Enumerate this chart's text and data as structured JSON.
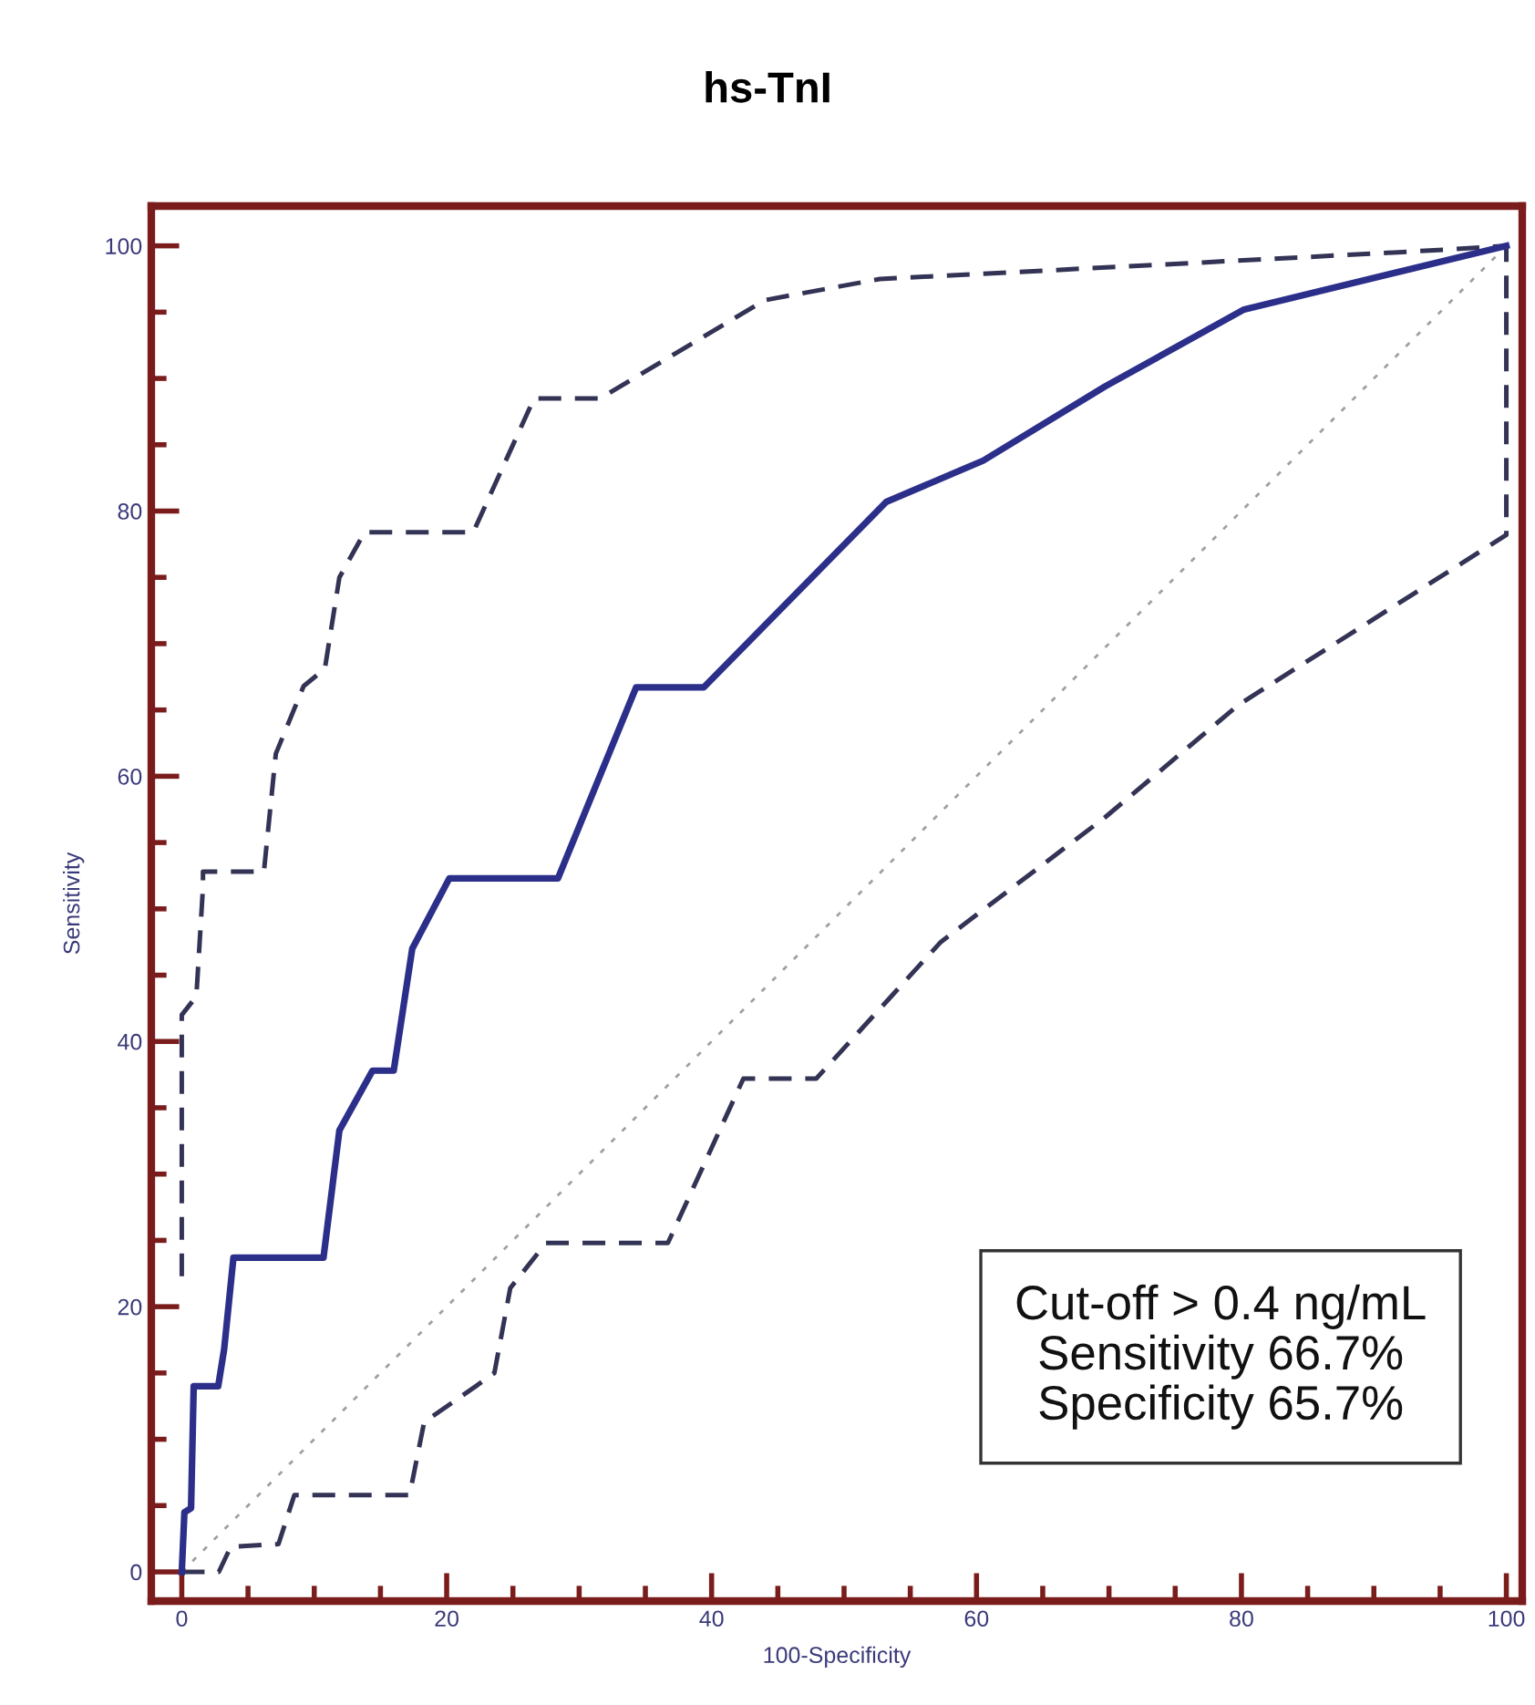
{
  "chart_data": {
    "type": "line",
    "title": "hs-TnI",
    "xlabel": "100-Specificity",
    "ylabel": "Sensitivity",
    "xlim": [
      -2.3,
      101.2
    ],
    "ylim": [
      -2.2,
      103
    ],
    "xticks": [
      0,
      {
        "value": 5,
        "label": null
      },
      {
        "value": 10,
        "label": null
      },
      {
        "value": 15,
        "label": null
      },
      20,
      {
        "value": 25,
        "label": null
      },
      {
        "value": 30,
        "label": null
      },
      {
        "value": 35,
        "label": null
      },
      40,
      {
        "value": 45,
        "label": null
      },
      {
        "value": 50,
        "label": null
      },
      {
        "value": 55,
        "label": null
      },
      60,
      {
        "value": 65,
        "label": null
      },
      {
        "value": 70,
        "label": null
      },
      {
        "value": 75,
        "label": null
      },
      80,
      {
        "value": 85,
        "label": null
      },
      {
        "value": 90,
        "label": null
      },
      {
        "value": 95,
        "label": null
      },
      100
    ],
    "yticks": [
      0,
      {
        "value": 5,
        "label": null
      },
      {
        "value": 10,
        "label": null
      },
      {
        "value": 15,
        "label": null
      },
      20,
      {
        "value": 25,
        "label": null
      },
      {
        "value": 30,
        "label": null
      },
      {
        "value": 35,
        "label": null
      },
      40,
      {
        "value": 45,
        "label": null
      },
      {
        "value": 50,
        "label": null
      },
      {
        "value": 55,
        "label": null
      },
      60,
      {
        "value": 65,
        "label": null
      },
      {
        "value": 70,
        "label": null
      },
      {
        "value": 75,
        "label": null
      },
      80,
      {
        "value": 85,
        "label": null
      },
      {
        "value": 90,
        "label": null
      },
      {
        "value": 95,
        "label": null
      },
      100
    ],
    "marker": "none",
    "series": [
      {
        "color": "#a0a0a0",
        "line_style": "dotted",
        "x": [
          0,
          100
        ],
        "values": [
          0,
          100
        ]
      },
      {
        "color": "#333355",
        "line_style": "dashed",
        "x": [
          0,
          0,
          1.1,
          1.6,
          1.6,
          6.2,
          7.1,
          9.2,
          10.8,
          11.9,
          13.8,
          22.0,
          26.6,
          31.6,
          44.0,
          52.7,
          74.3,
          95.3,
          100
        ],
        "values": [
          22.3,
          42,
          43.4,
          51.6,
          52.8,
          52.8,
          61.7,
          66.8,
          68.1,
          75.0,
          78.4,
          78.4,
          88.5,
          88.5,
          95.9,
          97.5,
          98.6,
          99.7,
          100
        ]
      },
      {
        "color": "#333355",
        "line_style": "dashed",
        "x": [
          0,
          2.8,
          3.7,
          7.3,
          8.5,
          17.2,
          18.3,
          22.2,
          23.6,
          24.8,
          27.5,
          36.7,
          42.4,
          47.9,
          57.3,
          69.7,
          79.8,
          100,
          100
        ],
        "values": [
          0,
          0,
          1.9,
          2.1,
          5.8,
          5.8,
          11.3,
          14.0,
          15.0,
          21.4,
          24.8,
          24.8,
          37.2,
          37.2,
          47.5,
          56.9,
          65.4,
          78.2,
          100
        ]
      },
      {
        "color": "#2b2f8a",
        "line_style": "solid",
        "x": [
          0,
          0.2,
          0.7,
          0.9,
          2.75,
          3.2,
          3.9,
          10.7,
          11.9,
          14.4,
          16.0,
          17.4,
          20.2,
          28.4,
          34.3,
          39.4,
          53.2,
          60.5,
          69.7,
          80.2,
          100
        ],
        "values": [
          0,
          4.5,
          4.8,
          14.0,
          14.0,
          16.8,
          23.7,
          23.7,
          33.3,
          37.8,
          37.8,
          47.0,
          52.3,
          52.3,
          66.7,
          66.7,
          80.7,
          83.8,
          89.4,
          95.2,
          100
        ]
      }
    ],
    "annotations": [
      "Cut-off > 0.4 ng/mL",
      "Sensitivity 66.7%",
      "Specificity 65.7%"
    ]
  }
}
